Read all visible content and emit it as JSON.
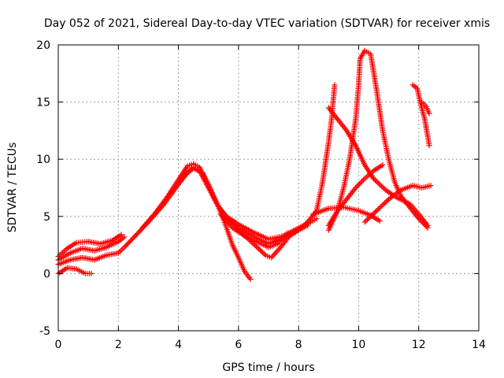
{
  "chart_data": {
    "type": "scatter",
    "title": "Day 052 of 2021, Sidereal Day-to-day VTEC variation (SDTVAR) for receiver xmis",
    "xlabel": "GPS time / hours",
    "ylabel": "SDTVAR / TECUs",
    "xlim": [
      0,
      14
    ],
    "ylim": [
      -5,
      20
    ],
    "xticks": [
      0,
      2,
      4,
      6,
      8,
      10,
      12,
      14
    ],
    "yticks": [
      -5,
      0,
      5,
      10,
      15,
      20
    ],
    "grid": true,
    "marker": "+",
    "color": "#ff0000",
    "series": [
      {
        "points": [
          [
            0.0,
            1.5
          ],
          [
            0.3,
            2.2
          ],
          [
            0.6,
            2.7
          ],
          [
            1.0,
            2.8
          ],
          [
            1.4,
            2.6
          ],
          [
            1.8,
            2.9
          ],
          [
            2.1,
            3.4
          ]
        ]
      },
      {
        "points": [
          [
            0.0,
            1.2
          ],
          [
            0.4,
            1.8
          ],
          [
            0.8,
            2.2
          ],
          [
            1.2,
            2.0
          ],
          [
            1.6,
            2.3
          ],
          [
            2.0,
            2.8
          ],
          [
            2.2,
            3.2
          ]
        ]
      },
      {
        "points": [
          [
            0.0,
            0.0
          ],
          [
            0.3,
            0.5
          ],
          [
            0.6,
            0.4
          ],
          [
            0.9,
            0.0
          ],
          [
            1.1,
            0.0
          ]
        ]
      },
      {
        "points": [
          [
            0.0,
            0.8
          ],
          [
            0.4,
            1.2
          ],
          [
            0.8,
            1.4
          ],
          [
            1.2,
            1.2
          ],
          [
            1.6,
            1.6
          ],
          [
            2.0,
            1.8
          ],
          [
            2.2,
            2.3
          ],
          [
            2.6,
            3.4
          ],
          [
            3.0,
            4.5
          ],
          [
            3.5,
            6.0
          ],
          [
            4.0,
            7.8
          ],
          [
            4.3,
            8.8
          ],
          [
            4.5,
            9.3
          ],
          [
            4.7,
            9.0
          ],
          [
            5.0,
            7.5
          ],
          [
            5.3,
            6.0
          ],
          [
            5.6,
            5.0
          ],
          [
            6.0,
            4.3
          ],
          [
            6.5,
            3.6
          ],
          [
            7.0,
            3.0
          ],
          [
            7.5,
            3.3
          ],
          [
            8.0,
            4.0
          ],
          [
            8.4,
            4.5
          ],
          [
            8.6,
            4.8
          ]
        ]
      },
      {
        "points": [
          [
            2.8,
            4.0
          ],
          [
            3.2,
            5.2
          ],
          [
            3.6,
            6.6
          ],
          [
            4.0,
            8.2
          ],
          [
            4.3,
            9.4
          ],
          [
            4.5,
            9.6
          ],
          [
            4.7,
            9.3
          ],
          [
            5.0,
            7.8
          ],
          [
            5.3,
            6.0
          ],
          [
            5.6,
            4.8
          ],
          [
            6.0,
            4.0
          ],
          [
            6.6,
            3.1
          ],
          [
            7.0,
            2.6
          ],
          [
            7.5,
            3.1
          ],
          [
            8.0,
            3.8
          ],
          [
            8.3,
            4.2
          ]
        ]
      },
      {
        "points": [
          [
            4.0,
            7.9
          ],
          [
            4.2,
            8.6
          ],
          [
            4.5,
            9.2
          ],
          [
            4.8,
            8.8
          ],
          [
            5.1,
            7.2
          ],
          [
            5.4,
            5.4
          ],
          [
            5.6,
            4.0
          ],
          [
            5.8,
            2.5
          ],
          [
            6.0,
            1.4
          ],
          [
            6.2,
            0.2
          ],
          [
            6.4,
            -0.5
          ]
        ]
      },
      {
        "points": [
          [
            5.4,
            5.2
          ],
          [
            5.8,
            4.0
          ],
          [
            6.2,
            3.3
          ],
          [
            6.6,
            2.8
          ],
          [
            7.0,
            2.3
          ],
          [
            7.3,
            2.6
          ],
          [
            7.6,
            3.5
          ],
          [
            7.9,
            3.6
          ]
        ]
      },
      {
        "points": [
          [
            5.7,
            4.8
          ],
          [
            6.0,
            3.8
          ],
          [
            6.5,
            2.6
          ],
          [
            6.9,
            1.6
          ],
          [
            7.1,
            1.4
          ],
          [
            7.4,
            2.3
          ],
          [
            7.7,
            3.3
          ],
          [
            8.0,
            3.8
          ]
        ]
      },
      {
        "points": [
          [
            8.0,
            3.8
          ],
          [
            8.3,
            4.5
          ],
          [
            8.6,
            5.5
          ],
          [
            8.8,
            8.0
          ],
          [
            9.0,
            11.5
          ],
          [
            9.1,
            13.5
          ],
          [
            9.2,
            16.5
          ]
        ]
      },
      {
        "points": [
          [
            8.5,
            5.2
          ],
          [
            9.0,
            5.7
          ],
          [
            9.5,
            5.8
          ],
          [
            10.0,
            5.5
          ],
          [
            10.4,
            5.1
          ],
          [
            10.7,
            4.6
          ]
        ]
      },
      {
        "points": [
          [
            9.0,
            14.5
          ],
          [
            9.3,
            13.5
          ],
          [
            9.6,
            12.5
          ],
          [
            9.9,
            11.2
          ],
          [
            10.2,
            9.5
          ],
          [
            10.5,
            8.3
          ],
          [
            10.9,
            7.3
          ],
          [
            11.3,
            6.6
          ],
          [
            11.7,
            6.1
          ],
          [
            12.0,
            5.2
          ],
          [
            12.3,
            4.2
          ]
        ]
      },
      {
        "points": [
          [
            9.0,
            3.8
          ],
          [
            9.3,
            5.5
          ],
          [
            9.5,
            7.5
          ],
          [
            9.7,
            10.0
          ],
          [
            9.9,
            13.5
          ],
          [
            10.0,
            16.5
          ],
          [
            10.05,
            18.8
          ],
          [
            10.2,
            19.5
          ],
          [
            10.4,
            19.2
          ],
          [
            10.6,
            16.0
          ],
          [
            10.8,
            12.5
          ],
          [
            11.0,
            10.0
          ],
          [
            11.2,
            8.0
          ],
          [
            11.4,
            6.8
          ],
          [
            11.7,
            5.8
          ],
          [
            12.0,
            4.8
          ],
          [
            12.3,
            4.0
          ]
        ]
      },
      {
        "points": [
          [
            9.0,
            4.2
          ],
          [
            9.3,
            5.5
          ],
          [
            9.6,
            6.5
          ],
          [
            9.9,
            7.5
          ],
          [
            10.2,
            8.3
          ],
          [
            10.5,
            9.0
          ],
          [
            10.8,
            9.5
          ]
        ]
      },
      {
        "points": [
          [
            10.2,
            4.5
          ],
          [
            10.6,
            5.5
          ],
          [
            11.0,
            6.5
          ],
          [
            11.4,
            7.3
          ],
          [
            11.8,
            7.7
          ],
          [
            12.1,
            7.5
          ],
          [
            12.4,
            7.7
          ]
        ]
      },
      {
        "points": [
          [
            11.8,
            16.5
          ],
          [
            11.95,
            16.2
          ],
          [
            12.05,
            15.0
          ],
          [
            12.2,
            13.5
          ],
          [
            12.3,
            12.0
          ],
          [
            12.35,
            11.2
          ]
        ]
      },
      {
        "points": [
          [
            12.1,
            15.0
          ],
          [
            12.25,
            14.6
          ],
          [
            12.35,
            14.0
          ]
        ]
      }
    ]
  }
}
